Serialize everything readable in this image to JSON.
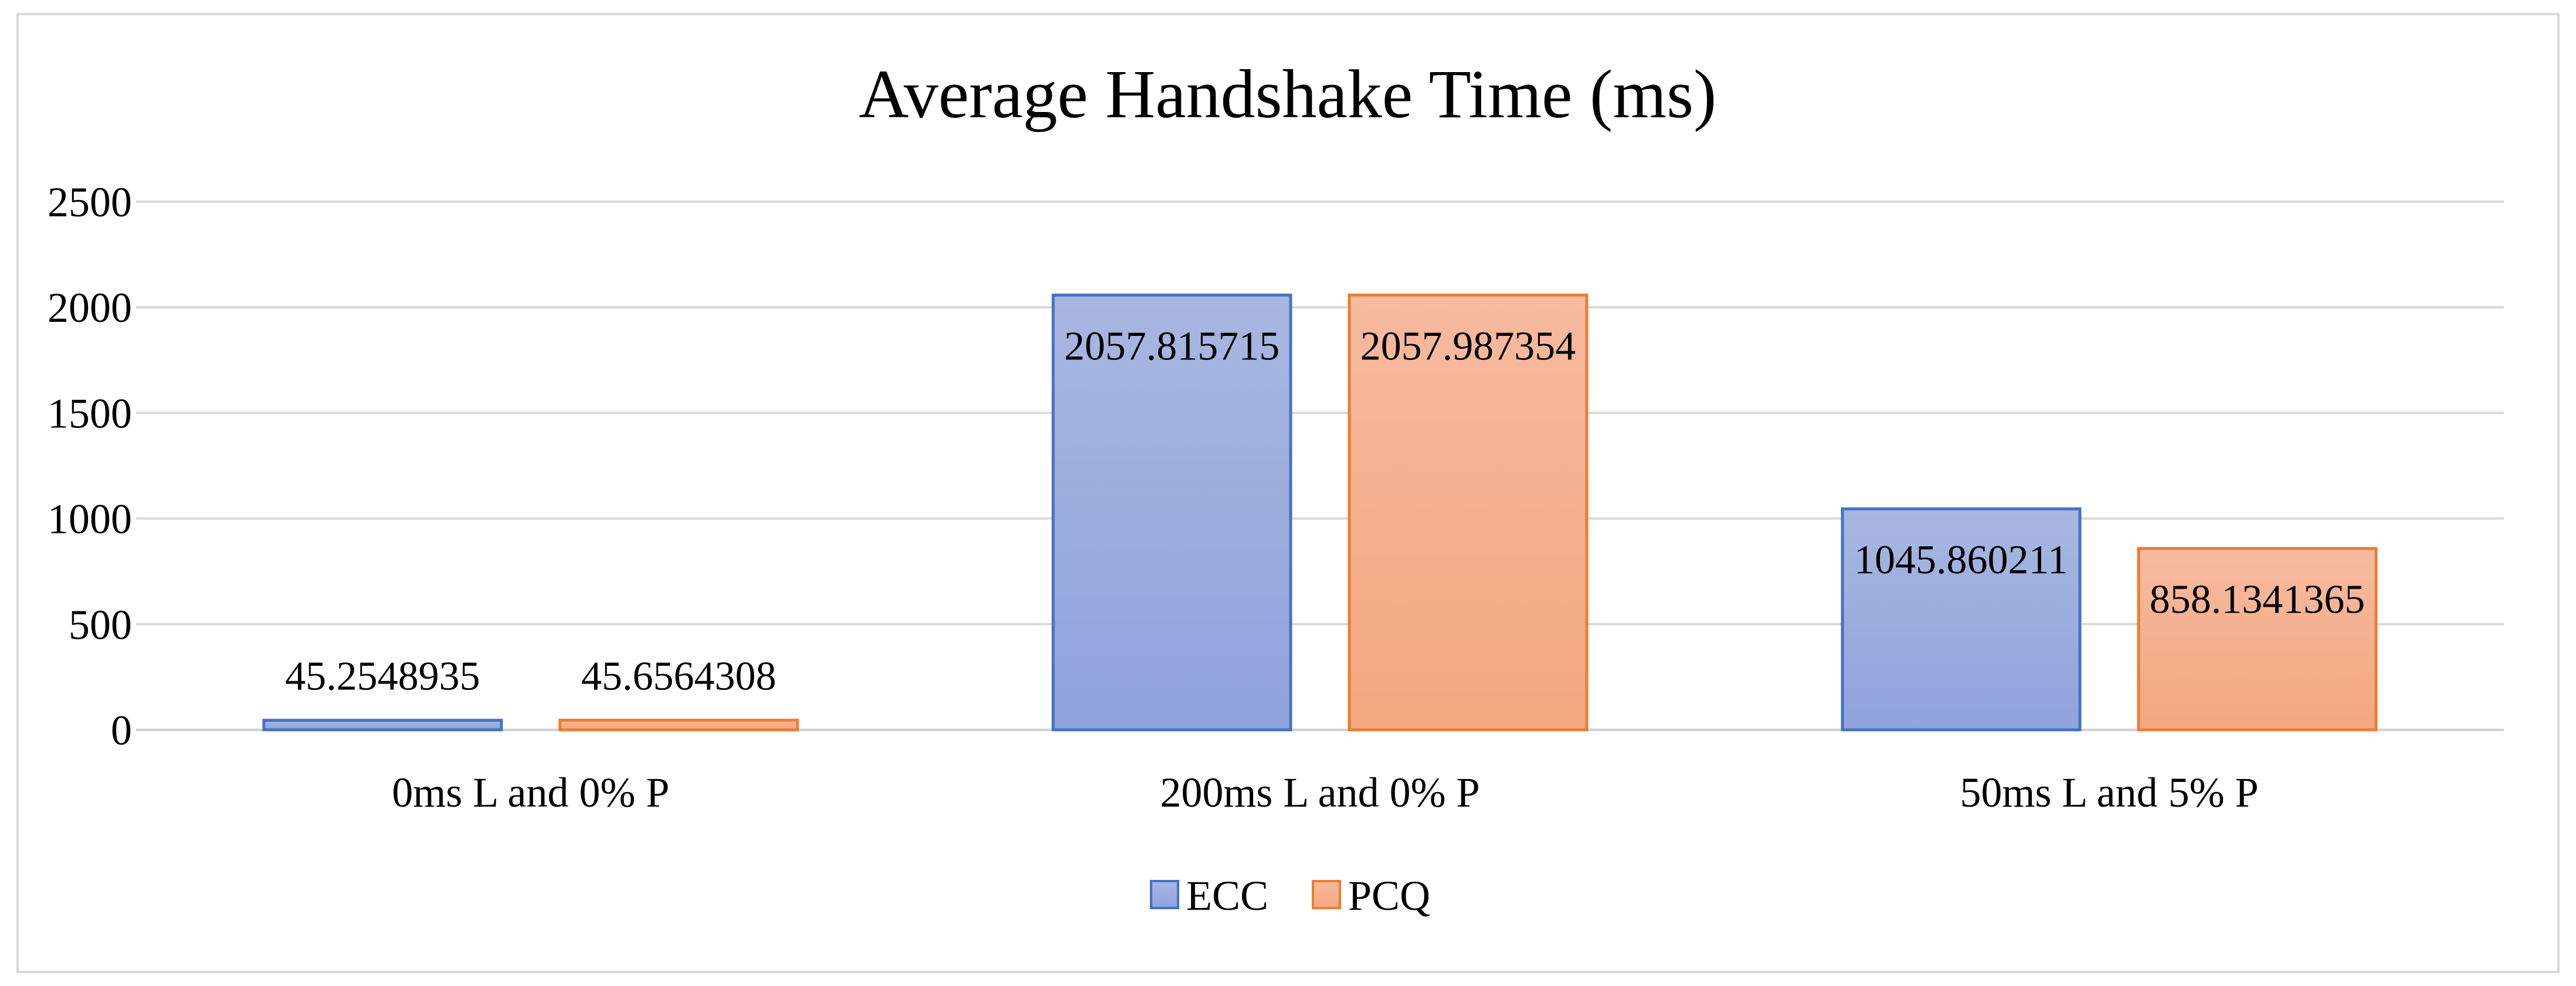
{
  "chart_data": {
    "type": "bar",
    "title": "Average Handshake Time (ms)",
    "xlabel": "",
    "ylabel": "",
    "categories": [
      "0ms L and 0% P",
      "200ms L and 0% P",
      "50ms L and 5% P"
    ],
    "series": [
      {
        "name": "ECC",
        "values": [
          45.2548935,
          2057.815715,
          1045.860211
        ],
        "labels": [
          "45.2548935",
          "2057.815715",
          "1045.860211"
        ],
        "color": "#8fa3dd",
        "color_top": "#a8b7e0",
        "border": "#4472c4"
      },
      {
        "name": "PCQ",
        "values": [
          45.6564308,
          2057.987354,
          858.1341365
        ],
        "labels": [
          "45.6564308",
          "2057.987354",
          "858.1341365"
        ],
        "color": "#f4a77f",
        "color_top": "#f6baa0",
        "border": "#ed7d31"
      }
    ],
    "ylim": [
      0,
      2500
    ],
    "yticks": [
      0,
      500,
      1000,
      1500,
      2000,
      2500
    ],
    "grid": true,
    "legend_position": "bottom"
  }
}
